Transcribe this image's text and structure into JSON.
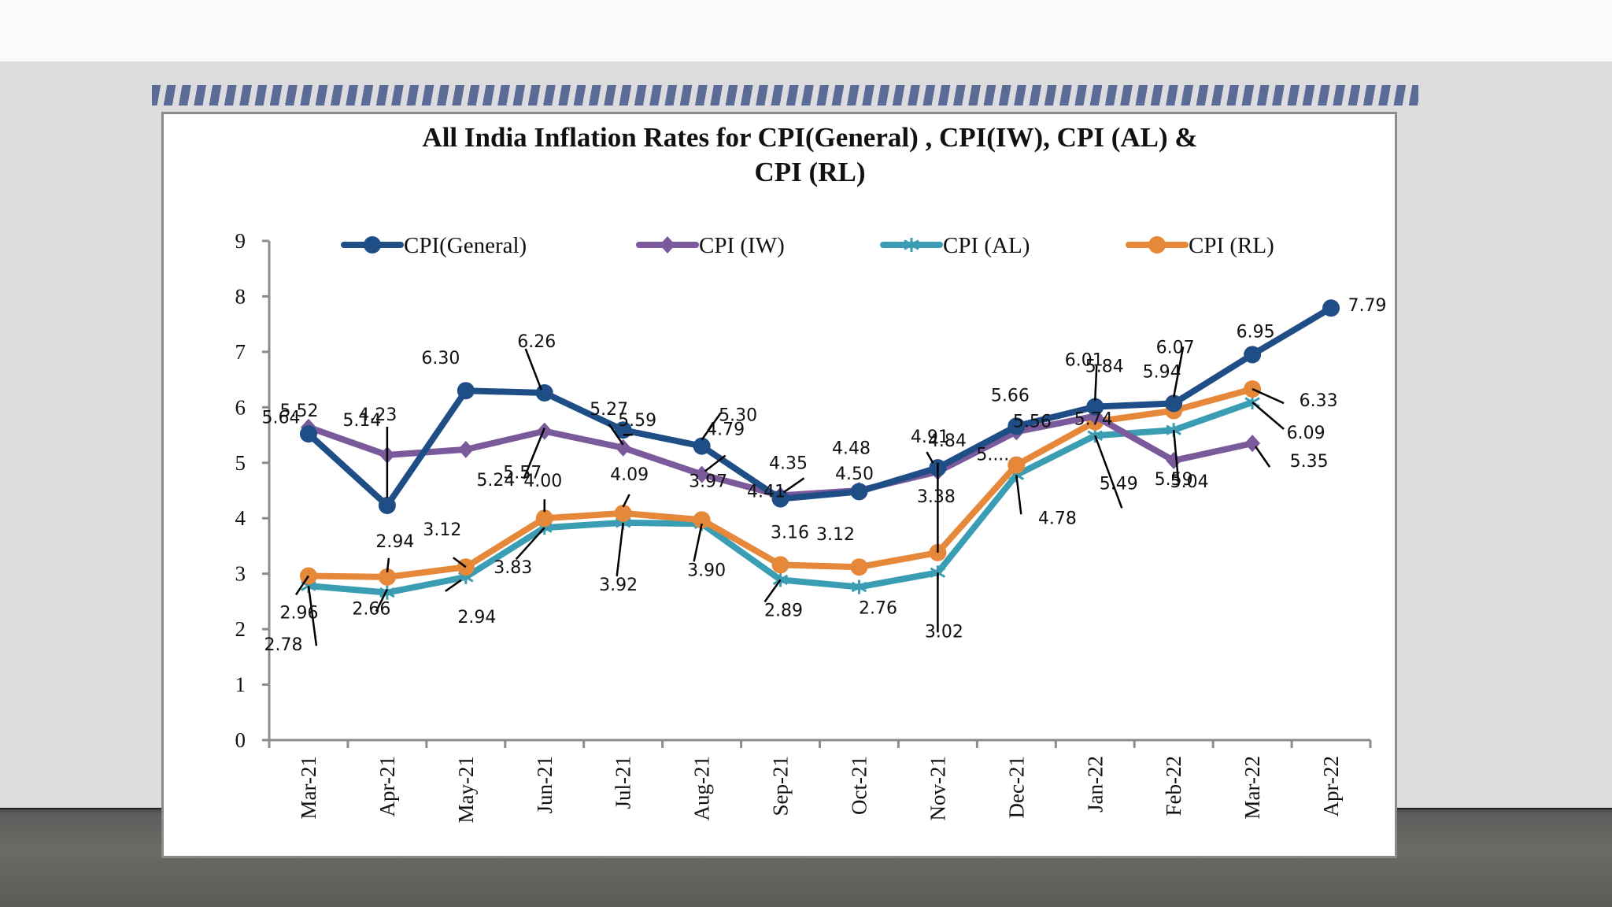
{
  "chart_data": {
    "type": "line",
    "title_lines": [
      "All India Inflation Rates for CPI(General) , CPI(IW), CPI (AL) &",
      "CPI (RL)"
    ],
    "xlabel": "",
    "ylabel": "",
    "ylim": [
      0,
      9
    ],
    "yticks": [
      "0",
      "1",
      "2",
      "3",
      "4",
      "5",
      "6",
      "7",
      "8",
      "9"
    ],
    "grid": false,
    "legend_position": "top",
    "categories": [
      "Mar-21",
      "Apr-21",
      "May-21",
      "Jun-21",
      "Jul-21",
      "Aug-21",
      "Sep-21",
      "Oct-21",
      "Nov-21",
      "Dec-21",
      "Jan-22",
      "Feb-22",
      "Mar-22",
      "Apr-22"
    ],
    "series": [
      {
        "name": "CPI(General)",
        "color": "#1f4e87",
        "marker": "circle",
        "values": [
          5.52,
          4.23,
          6.3,
          6.26,
          5.59,
          5.3,
          4.35,
          4.48,
          4.91,
          5.66,
          6.01,
          6.07,
          6.95,
          7.79
        ],
        "labels": [
          "5.52",
          "4.23",
          "6.30",
          "6.26",
          "5.59",
          "5.30",
          "4.35",
          "4.48",
          "4.91",
          "5.66",
          "6.01",
          "6.07",
          "6.95",
          "7.79"
        ]
      },
      {
        "name": "CPI (IW)",
        "color": "#7a5a9a",
        "marker": "diamond",
        "values": [
          5.64,
          5.14,
          5.24,
          5.57,
          5.27,
          4.79,
          4.41,
          4.5,
          4.84,
          5.56,
          5.84,
          5.04,
          5.35,
          null
        ],
        "labels": [
          "5.64",
          "5.14",
          "5.24",
          "5.57",
          "5.27",
          "4.79",
          "4.41",
          "4.50",
          "4.84",
          "5.56",
          "5.84",
          "5.04",
          "5.35",
          ""
        ]
      },
      {
        "name": "CPI (AL)",
        "color": "#3a9db3",
        "marker": "star",
        "values": [
          2.78,
          2.66,
          2.94,
          3.83,
          3.92,
          3.9,
          2.89,
          2.76,
          3.02,
          4.78,
          5.49,
          5.59,
          6.09,
          null
        ],
        "labels": [
          "2.78",
          "2.66",
          "2.94",
          "3.83",
          "3.92",
          "3.90",
          "2.89",
          "2.76",
          "3.02",
          "4.78",
          "5.49",
          "5.59",
          "6.09",
          ""
        ]
      },
      {
        "name": "CPI (RL)",
        "color": "#e6883a",
        "marker": "circle",
        "values": [
          2.96,
          2.94,
          3.12,
          4.0,
          4.09,
          3.97,
          3.16,
          3.12,
          3.38,
          4.96,
          5.74,
          5.94,
          6.33,
          null
        ],
        "labels": [
          "2.96",
          "2.94",
          "3.12",
          "4.00",
          "4.09",
          "3.97",
          "3.16",
          "3.12",
          "3.38",
          "5....",
          "5.74",
          "5.94",
          "6.33",
          ""
        ]
      }
    ]
  }
}
